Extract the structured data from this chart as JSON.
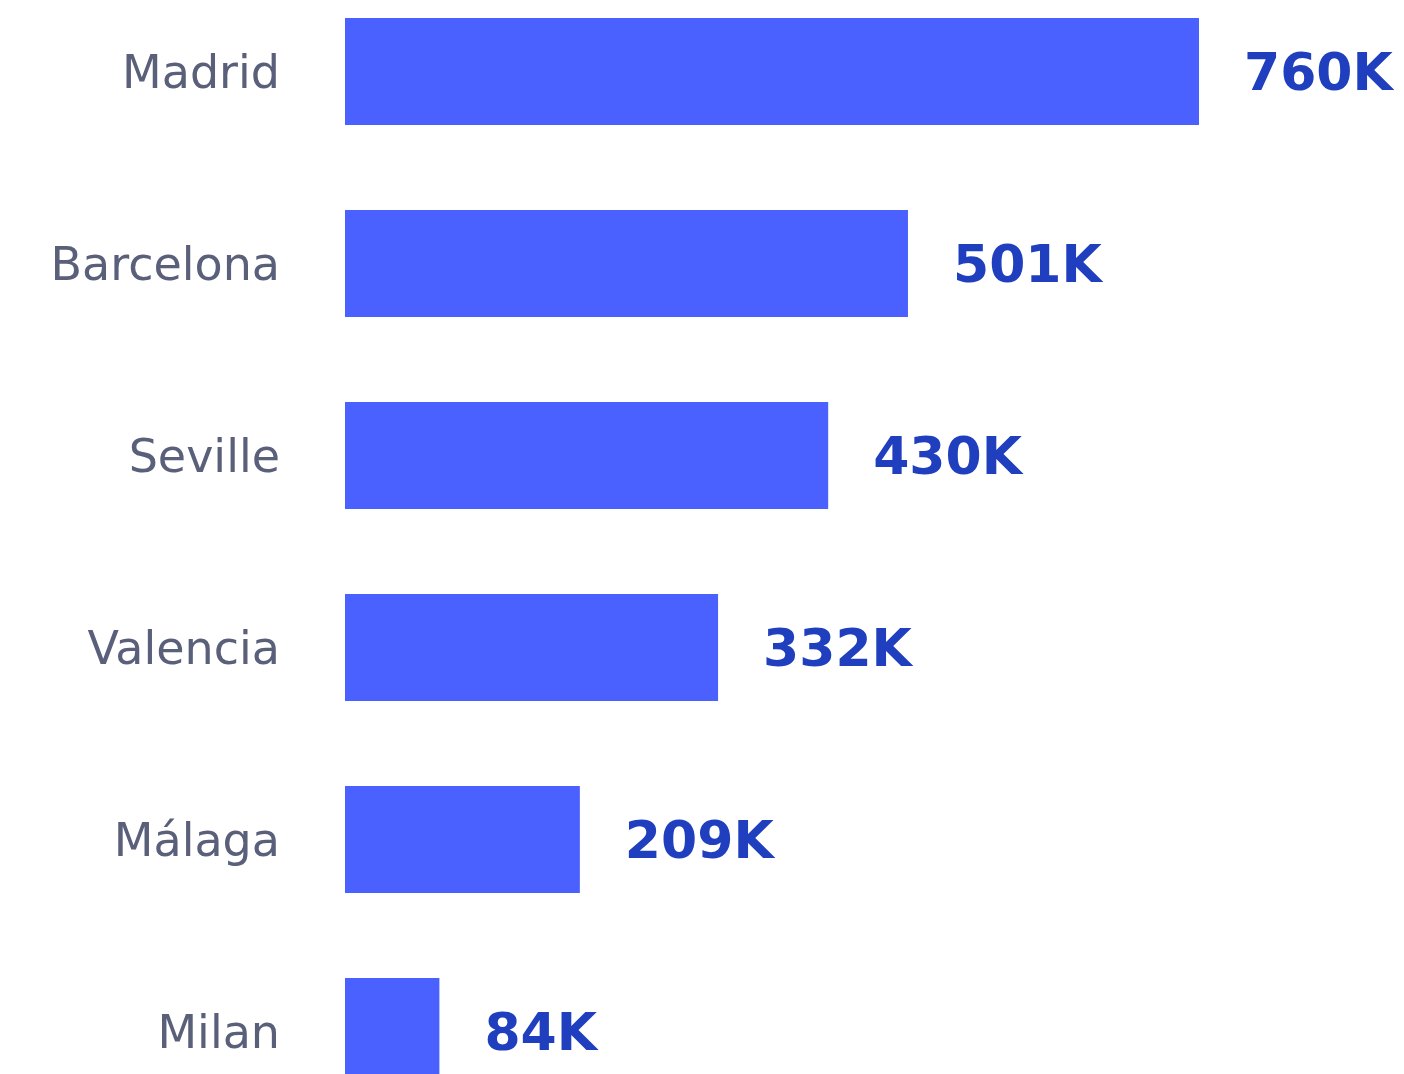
{
  "chart_data": {
    "type": "bar",
    "orientation": "horizontal",
    "categories": [
      "Madrid",
      "Barcelona",
      "Seville",
      "Valencia",
      "Málaga",
      "Milan"
    ],
    "values": [
      760,
      501,
      430,
      332,
      209,
      84
    ],
    "value_labels": [
      "760K",
      "501K",
      "430K",
      "332K",
      "209K",
      "84K"
    ],
    "color": "#4a61ff"
  }
}
